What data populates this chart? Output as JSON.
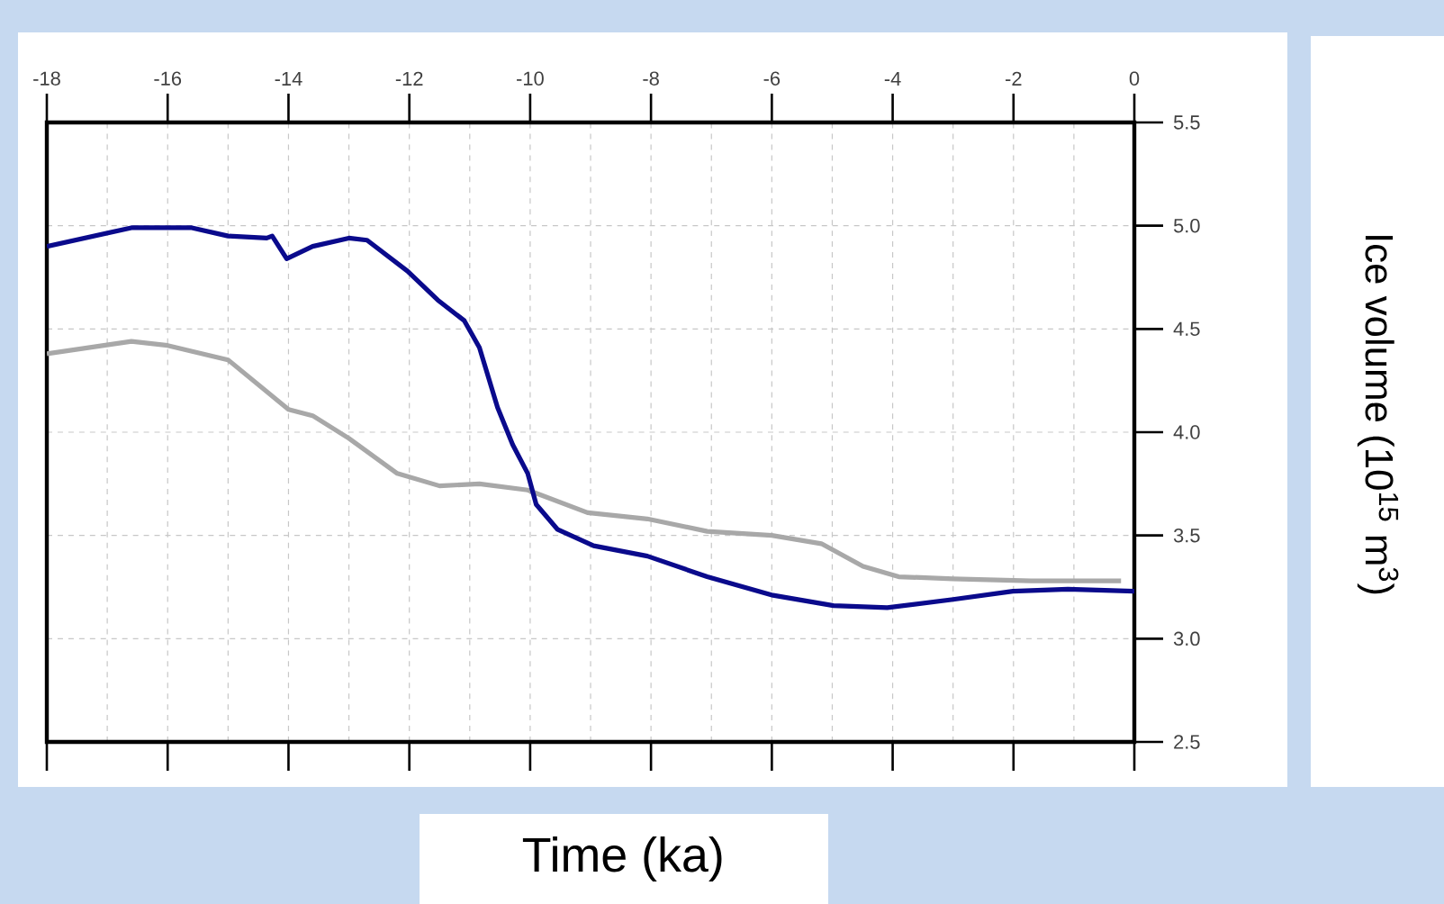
{
  "chart_data": {
    "type": "line",
    "xlabel": "Time (ka)",
    "ylabel": "Ice volume (10$^{15}$ m$^{3}$)",
    "xlim": [
      -18,
      0
    ],
    "ylim": [
      2.5,
      5.5
    ],
    "xticks": [
      -18,
      -16,
      -14,
      -12,
      -10,
      -8,
      -6,
      -4,
      -2,
      0
    ],
    "yticks": [
      {
        "value": 2.5,
        "label": "2.5"
      },
      {
        "value": 3,
        "label": "3.0"
      },
      {
        "value": 3.5,
        "label": "3.5"
      },
      {
        "value": 4,
        "label": "4.0"
      },
      {
        "value": 4.5,
        "label": "4.5"
      },
      {
        "value": 5,
        "label": "5.0"
      },
      {
        "value": 5.5,
        "label": "5.5"
      }
    ],
    "grid": true,
    "marker": "none",
    "series": [
      {
        "color": "#a8a8a8",
        "x": [
          -18,
          -16.6,
          -16,
          -15,
          -14.5,
          -14,
          -13.6,
          -13,
          -12.2,
          -11.5,
          -10.84,
          -10.04,
          -9.05,
          -8.06,
          -7.07,
          -6,
          -5.18,
          -4.49,
          -3.9,
          -3,
          -1.71,
          -0.22
        ],
        "values": [
          4.38,
          4.44,
          4.42,
          4.35,
          4.23,
          4.11,
          4.08,
          3.97,
          3.8,
          3.74,
          3.75,
          3.72,
          3.61,
          3.58,
          3.52,
          3.5,
          3.46,
          3.35,
          3.3,
          3.29,
          3.28,
          3.28
        ]
      },
      {
        "color": "#0a0a8c",
        "x": [
          -18,
          -16.6,
          -15.6,
          -15,
          -14.36,
          -14.27,
          -14.03,
          -13.6,
          -13,
          -12.7,
          -12.03,
          -11.53,
          -11.09,
          -10.84,
          -10.54,
          -10.29,
          -10.04,
          -9.9,
          -9.55,
          -8.95,
          -8.06,
          -7.07,
          -5.98,
          -4.98,
          -4.09,
          -3,
          -2.01,
          -1.1,
          0
        ],
        "values": [
          4.9,
          4.99,
          4.99,
          4.95,
          4.94,
          4.95,
          4.84,
          4.9,
          4.94,
          4.93,
          4.78,
          4.64,
          4.54,
          4.41,
          4.12,
          3.94,
          3.8,
          3.65,
          3.53,
          3.45,
          3.4,
          3.3,
          3.21,
          3.16,
          3.15,
          3.19,
          3.23,
          3.24,
          3.23
        ]
      }
    ]
  }
}
